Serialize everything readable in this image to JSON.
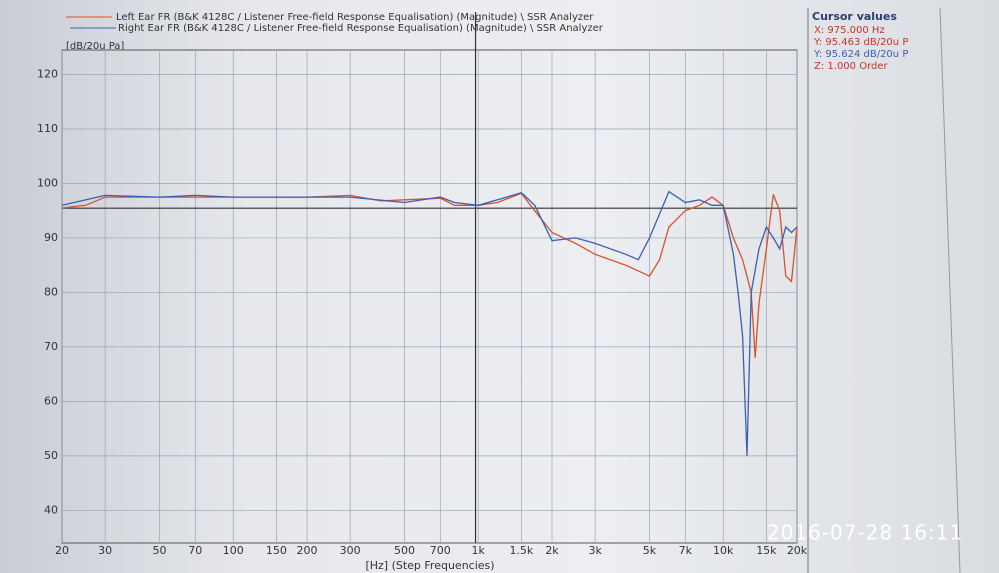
{
  "chart_data": {
    "type": "line",
    "legend": [
      "Left Ear FR (B&K 4128C / Listener Free-field Response Equalisation) (Magnitude) \\ SSR Analyzer",
      "Right Ear FR (B&K 4128C / Listener Free-field Response Equalisation) (Magnitude) \\ SSR Analyzer"
    ],
    "y_label": "[dB/20u Pa]",
    "x_label": "[Hz] (Step Frequencies)",
    "log_x": true,
    "grid": true,
    "xlim": [
      20,
      20000
    ],
    "ylim": [
      34,
      124.5
    ],
    "xticks": [
      20,
      30,
      50,
      70,
      100,
      150,
      200,
      300,
      500,
      700,
      {
        "value": 1000,
        "label": "1k"
      },
      {
        "value": 1500,
        "label": "1.5k"
      },
      {
        "value": 2000,
        "label": "2k"
      },
      {
        "value": 3000,
        "label": "3k"
      },
      {
        "value": 5000,
        "label": "5k"
      },
      {
        "value": 7000,
        "label": "7k"
      },
      {
        "value": 10000,
        "label": "10k"
      },
      {
        "value": 15000,
        "label": "15k"
      },
      {
        "value": 20000,
        "label": "20k"
      }
    ],
    "yticks": [
      40,
      50,
      60,
      70,
      80,
      90,
      100,
      110,
      120
    ],
    "series": [
      {
        "name": "Left Ear",
        "color": "#d8522e",
        "x": [
          20,
          25,
          30,
          40,
          50,
          70,
          100,
          150,
          200,
          300,
          400,
          500,
          700,
          800,
          1000,
          1200,
          1500,
          1700,
          2000,
          2500,
          3000,
          4000,
          5000,
          5500,
          6000,
          7000,
          8000,
          9000,
          10000,
          11000,
          12000,
          13000,
          13500,
          14000,
          15000,
          16000,
          17000,
          18000,
          19000,
          20000
        ],
        "values": [
          95.5,
          96,
          97.5,
          97.5,
          97.5,
          97.5,
          97.5,
          97.5,
          97.5,
          97.8,
          96.8,
          97,
          97.3,
          96,
          96,
          96.5,
          98.2,
          95,
          91,
          89,
          87,
          85,
          83,
          86,
          92,
          95,
          96,
          97.5,
          96,
          90,
          86,
          80,
          68,
          78,
          88,
          98,
          95,
          83,
          82,
          92
        ]
      },
      {
        "name": "Right Ear",
        "color": "#3b5fb2",
        "x": [
          20,
          30,
          50,
          70,
          100,
          200,
          300,
          500,
          700,
          800,
          1000,
          1200,
          1500,
          1700,
          2000,
          2500,
          3000,
          4000,
          4500,
          5000,
          6000,
          7000,
          8000,
          9000,
          10000,
          11000,
          11500,
          12000,
          12500,
          13000,
          14000,
          15000,
          16000,
          17000,
          18000,
          19000,
          20000
        ],
        "values": [
          96,
          97.8,
          97.5,
          97.8,
          97.5,
          97.5,
          97.5,
          96.5,
          97.5,
          96.5,
          96,
          97,
          98.3,
          96,
          89.5,
          90,
          89,
          87,
          86,
          90,
          98.5,
          96.5,
          97,
          96,
          96,
          87,
          80,
          72,
          50,
          80,
          88,
          92,
          90,
          88,
          92,
          91,
          92
        ]
      }
    ],
    "cursor": {
      "x": 975,
      "y": 95.463
    },
    "cursor_panel": {
      "title": "Cursor values",
      "lines": [
        {
          "text": "X: 975.000 Hz",
          "color": "#c0392b"
        },
        {
          "text": "Y: 95.463 dB/20u P",
          "color": "#c0392b"
        },
        {
          "text": "Y: 95.624 dB/20u P",
          "color": "#3b5fb2"
        },
        {
          "text": "Z: 1.000 Order",
          "color": "#c0392b"
        }
      ]
    }
  },
  "photo_timestamp": "2016-07-28 16:11"
}
